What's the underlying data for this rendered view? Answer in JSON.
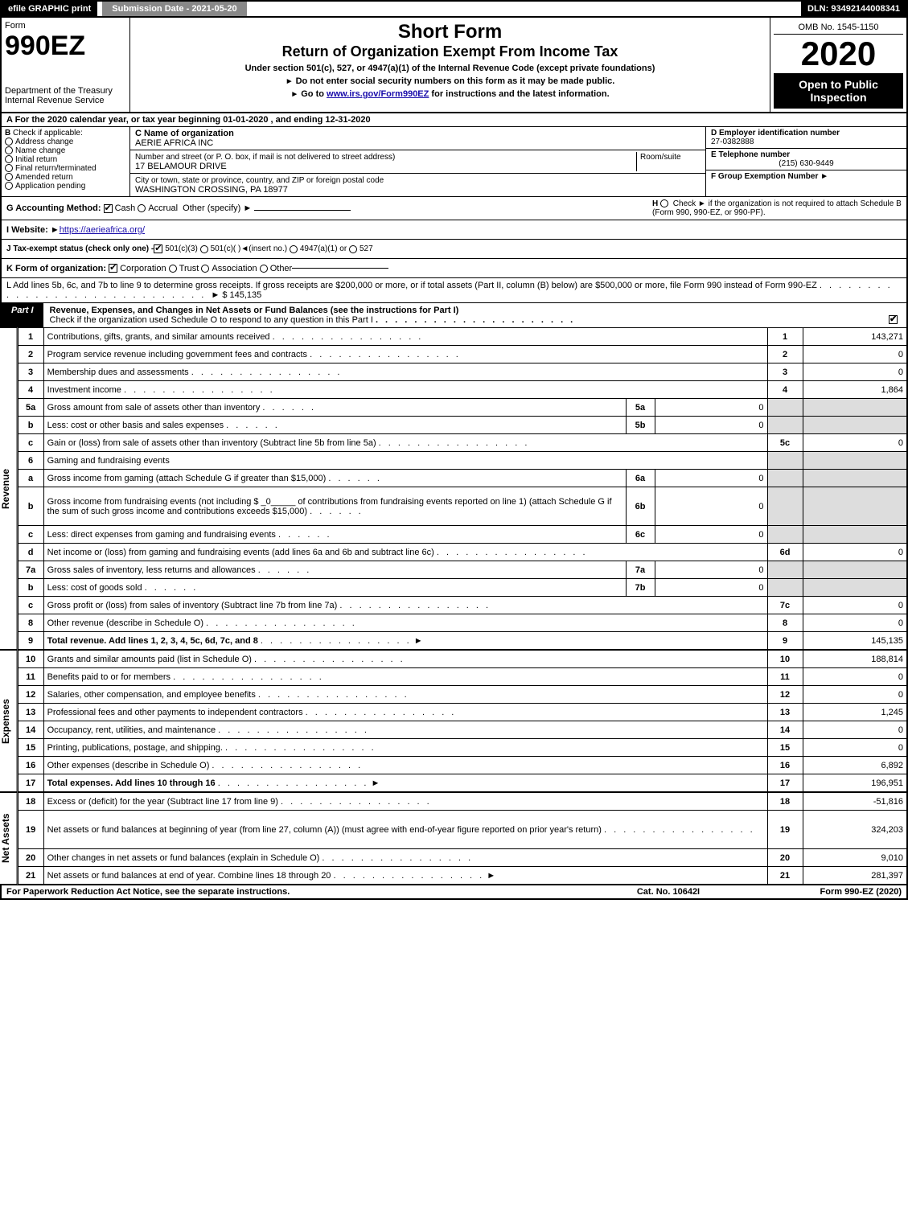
{
  "topbar": {
    "efile": "efile GRAPHIC print",
    "submission": "Submission Date - 2021-05-20",
    "dln": "DLN: 93492144008341"
  },
  "header": {
    "form_word": "Form",
    "form_no": "990EZ",
    "dept": "Department of the Treasury",
    "irs": "Internal Revenue Service",
    "short_form": "Short Form",
    "title": "Return of Organization Exempt From Income Tax",
    "subtitle": "Under section 501(c), 527, or 4947(a)(1) of the Internal Revenue Code (except private foundations)",
    "instr1": "Do not enter social security numbers on this form as it may be made public.",
    "instr2_pre": "Go to ",
    "instr2_link": "www.irs.gov/Form990EZ",
    "instr2_post": " for instructions and the latest information.",
    "omb": "OMB No. 1545-1150",
    "year": "2020",
    "open": "Open to Public Inspection"
  },
  "section_a": "A For the 2020 calendar year, or tax year beginning 01-01-2020 , and ending 12-31-2020",
  "b": {
    "label": "Check if applicable:",
    "opts": [
      "Address change",
      "Name change",
      "Initial return",
      "Final return/terminated",
      "Amended return",
      "Application pending"
    ]
  },
  "c": {
    "name_label": "C Name of organization",
    "name": "AERIE AFRICA INC",
    "street_label": "Number and street (or P. O. box, if mail is not delivered to street address)",
    "room_label": "Room/suite",
    "street": "17 BELAMOUR DRIVE",
    "city_label": "City or town, state or province, country, and ZIP or foreign postal code",
    "city": "WASHINGTON CROSSING, PA  18977"
  },
  "d": {
    "ein_label": "D Employer identification number",
    "ein": "27-0382888",
    "tel_label": "E Telephone number",
    "tel": "(215) 630-9449",
    "grp_label": "F Group Exemption Number"
  },
  "g": {
    "label": "G Accounting Method:",
    "cash": "Cash",
    "accrual": "Accrual",
    "other": "Other (specify)"
  },
  "h": {
    "text": "Check ►  if the organization is not required to attach Schedule B (Form 990, 990-EZ, or 990-PF)."
  },
  "i": {
    "label": "I Website: ",
    "url": "https://aerieafrica.org/"
  },
  "j": {
    "label": "J Tax-exempt status (check only one) - ",
    "o1": "501(c)(3)",
    "o2": "501(c)( )",
    "ins": "(insert no.)",
    "o3": "4947(a)(1) or",
    "o4": "527"
  },
  "k": {
    "label": "K Form of organization:",
    "opts": [
      "Corporation",
      "Trust",
      "Association",
      "Other"
    ]
  },
  "l": {
    "text": "L Add lines 5b, 6c, and 7b to line 9 to determine gross receipts. If gross receipts are $200,000 or more, or if total assets (Part II, column (B) below) are $500,000 or more, file Form 990 instead of Form 990-EZ",
    "amount": "$ 145,135"
  },
  "part1": {
    "tab": "Part I",
    "title": "Revenue, Expenses, and Changes in Net Assets or Fund Balances (see the instructions for Part I)",
    "check_line": "Check if the organization used Schedule O to respond to any question in this Part I"
  },
  "sections": {
    "rev": "Revenue",
    "exp": "Expenses",
    "net": "Net Assets"
  },
  "lines": [
    {
      "ln": "1",
      "desc": "Contributions, gifts, grants, and similar amounts received",
      "num": "1",
      "amt": "143,271"
    },
    {
      "ln": "2",
      "desc": "Program service revenue including government fees and contracts",
      "num": "2",
      "amt": "0"
    },
    {
      "ln": "3",
      "desc": "Membership dues and assessments",
      "num": "3",
      "amt": "0"
    },
    {
      "ln": "4",
      "desc": "Investment income",
      "num": "4",
      "amt": "1,864"
    },
    {
      "ln": "5a",
      "desc": "Gross amount from sale of assets other than inventory",
      "sub_ln": "5a",
      "sub_val": "0",
      "shade": true
    },
    {
      "ln": "b",
      "desc": "Less: cost or other basis and sales expenses",
      "sub_ln": "5b",
      "sub_val": "0",
      "shade": true
    },
    {
      "ln": "c",
      "desc": "Gain or (loss) from sale of assets other than inventory (Subtract line 5b from line 5a)",
      "num": "5c",
      "amt": "0"
    },
    {
      "ln": "6",
      "desc": "Gaming and fundraising events",
      "shade": true,
      "noamt": true
    },
    {
      "ln": "a",
      "desc": "Gross income from gaming (attach Schedule G if greater than $15,000)",
      "sub_ln": "6a",
      "sub_val": "0",
      "shade": true
    },
    {
      "ln": "b",
      "desc": "Gross income from fundraising events (not including $ _0_____ of contributions from fundraising events reported on line 1) (attach Schedule G if the sum of such gross income and contributions exceeds $15,000)",
      "sub_ln": "6b",
      "sub_val": "0",
      "shade": true,
      "tall": true
    },
    {
      "ln": "c",
      "desc": "Less: direct expenses from gaming and fundraising events",
      "sub_ln": "6c",
      "sub_val": "0",
      "shade": true
    },
    {
      "ln": "d",
      "desc": "Net income or (loss) from gaming and fundraising events (add lines 6a and 6b and subtract line 6c)",
      "num": "6d",
      "amt": "0"
    },
    {
      "ln": "7a",
      "desc": "Gross sales of inventory, less returns and allowances",
      "sub_ln": "7a",
      "sub_val": "0",
      "shade": true
    },
    {
      "ln": "b",
      "desc": "Less: cost of goods sold",
      "sub_ln": "7b",
      "sub_val": "0",
      "shade": true
    },
    {
      "ln": "c",
      "desc": "Gross profit or (loss) from sales of inventory (Subtract line 7b from line 7a)",
      "num": "7c",
      "amt": "0"
    },
    {
      "ln": "8",
      "desc": "Other revenue (describe in Schedule O)",
      "num": "8",
      "amt": "0"
    },
    {
      "ln": "9",
      "desc": "Total revenue. Add lines 1, 2, 3, 4, 5c, 6d, 7c, and 8",
      "num": "9",
      "amt": "145,135",
      "bold": true,
      "arrow": true
    }
  ],
  "exp_lines": [
    {
      "ln": "10",
      "desc": "Grants and similar amounts paid (list in Schedule O)",
      "num": "10",
      "amt": "188,814"
    },
    {
      "ln": "11",
      "desc": "Benefits paid to or for members",
      "num": "11",
      "amt": "0"
    },
    {
      "ln": "12",
      "desc": "Salaries, other compensation, and employee benefits",
      "num": "12",
      "amt": "0"
    },
    {
      "ln": "13",
      "desc": "Professional fees and other payments to independent contractors",
      "num": "13",
      "amt": "1,245"
    },
    {
      "ln": "14",
      "desc": "Occupancy, rent, utilities, and maintenance",
      "num": "14",
      "amt": "0"
    },
    {
      "ln": "15",
      "desc": "Printing, publications, postage, and shipping.",
      "num": "15",
      "amt": "0"
    },
    {
      "ln": "16",
      "desc": "Other expenses (describe in Schedule O)",
      "num": "16",
      "amt": "6,892"
    },
    {
      "ln": "17",
      "desc": "Total expenses. Add lines 10 through 16",
      "num": "17",
      "amt": "196,951",
      "bold": true,
      "arrow": true
    }
  ],
  "net_lines": [
    {
      "ln": "18",
      "desc": "Excess or (deficit) for the year (Subtract line 17 from line 9)",
      "num": "18",
      "amt": "-51,816"
    },
    {
      "ln": "19",
      "desc": "Net assets or fund balances at beginning of year (from line 27, column (A)) (must agree with end-of-year figure reported on prior year's return)",
      "num": "19",
      "amt": "324,203",
      "tall": true
    },
    {
      "ln": "20",
      "desc": "Other changes in net assets or fund balances (explain in Schedule O)",
      "num": "20",
      "amt": "9,010"
    },
    {
      "ln": "21",
      "desc": "Net assets or fund balances at end of year. Combine lines 18 through 20",
      "num": "21",
      "amt": "281,397",
      "arrow": true
    }
  ],
  "footer": {
    "left": "For Paperwork Reduction Act Notice, see the separate instructions.",
    "mid": "Cat. No. 10642I",
    "right": "Form 990-EZ (2020)"
  }
}
